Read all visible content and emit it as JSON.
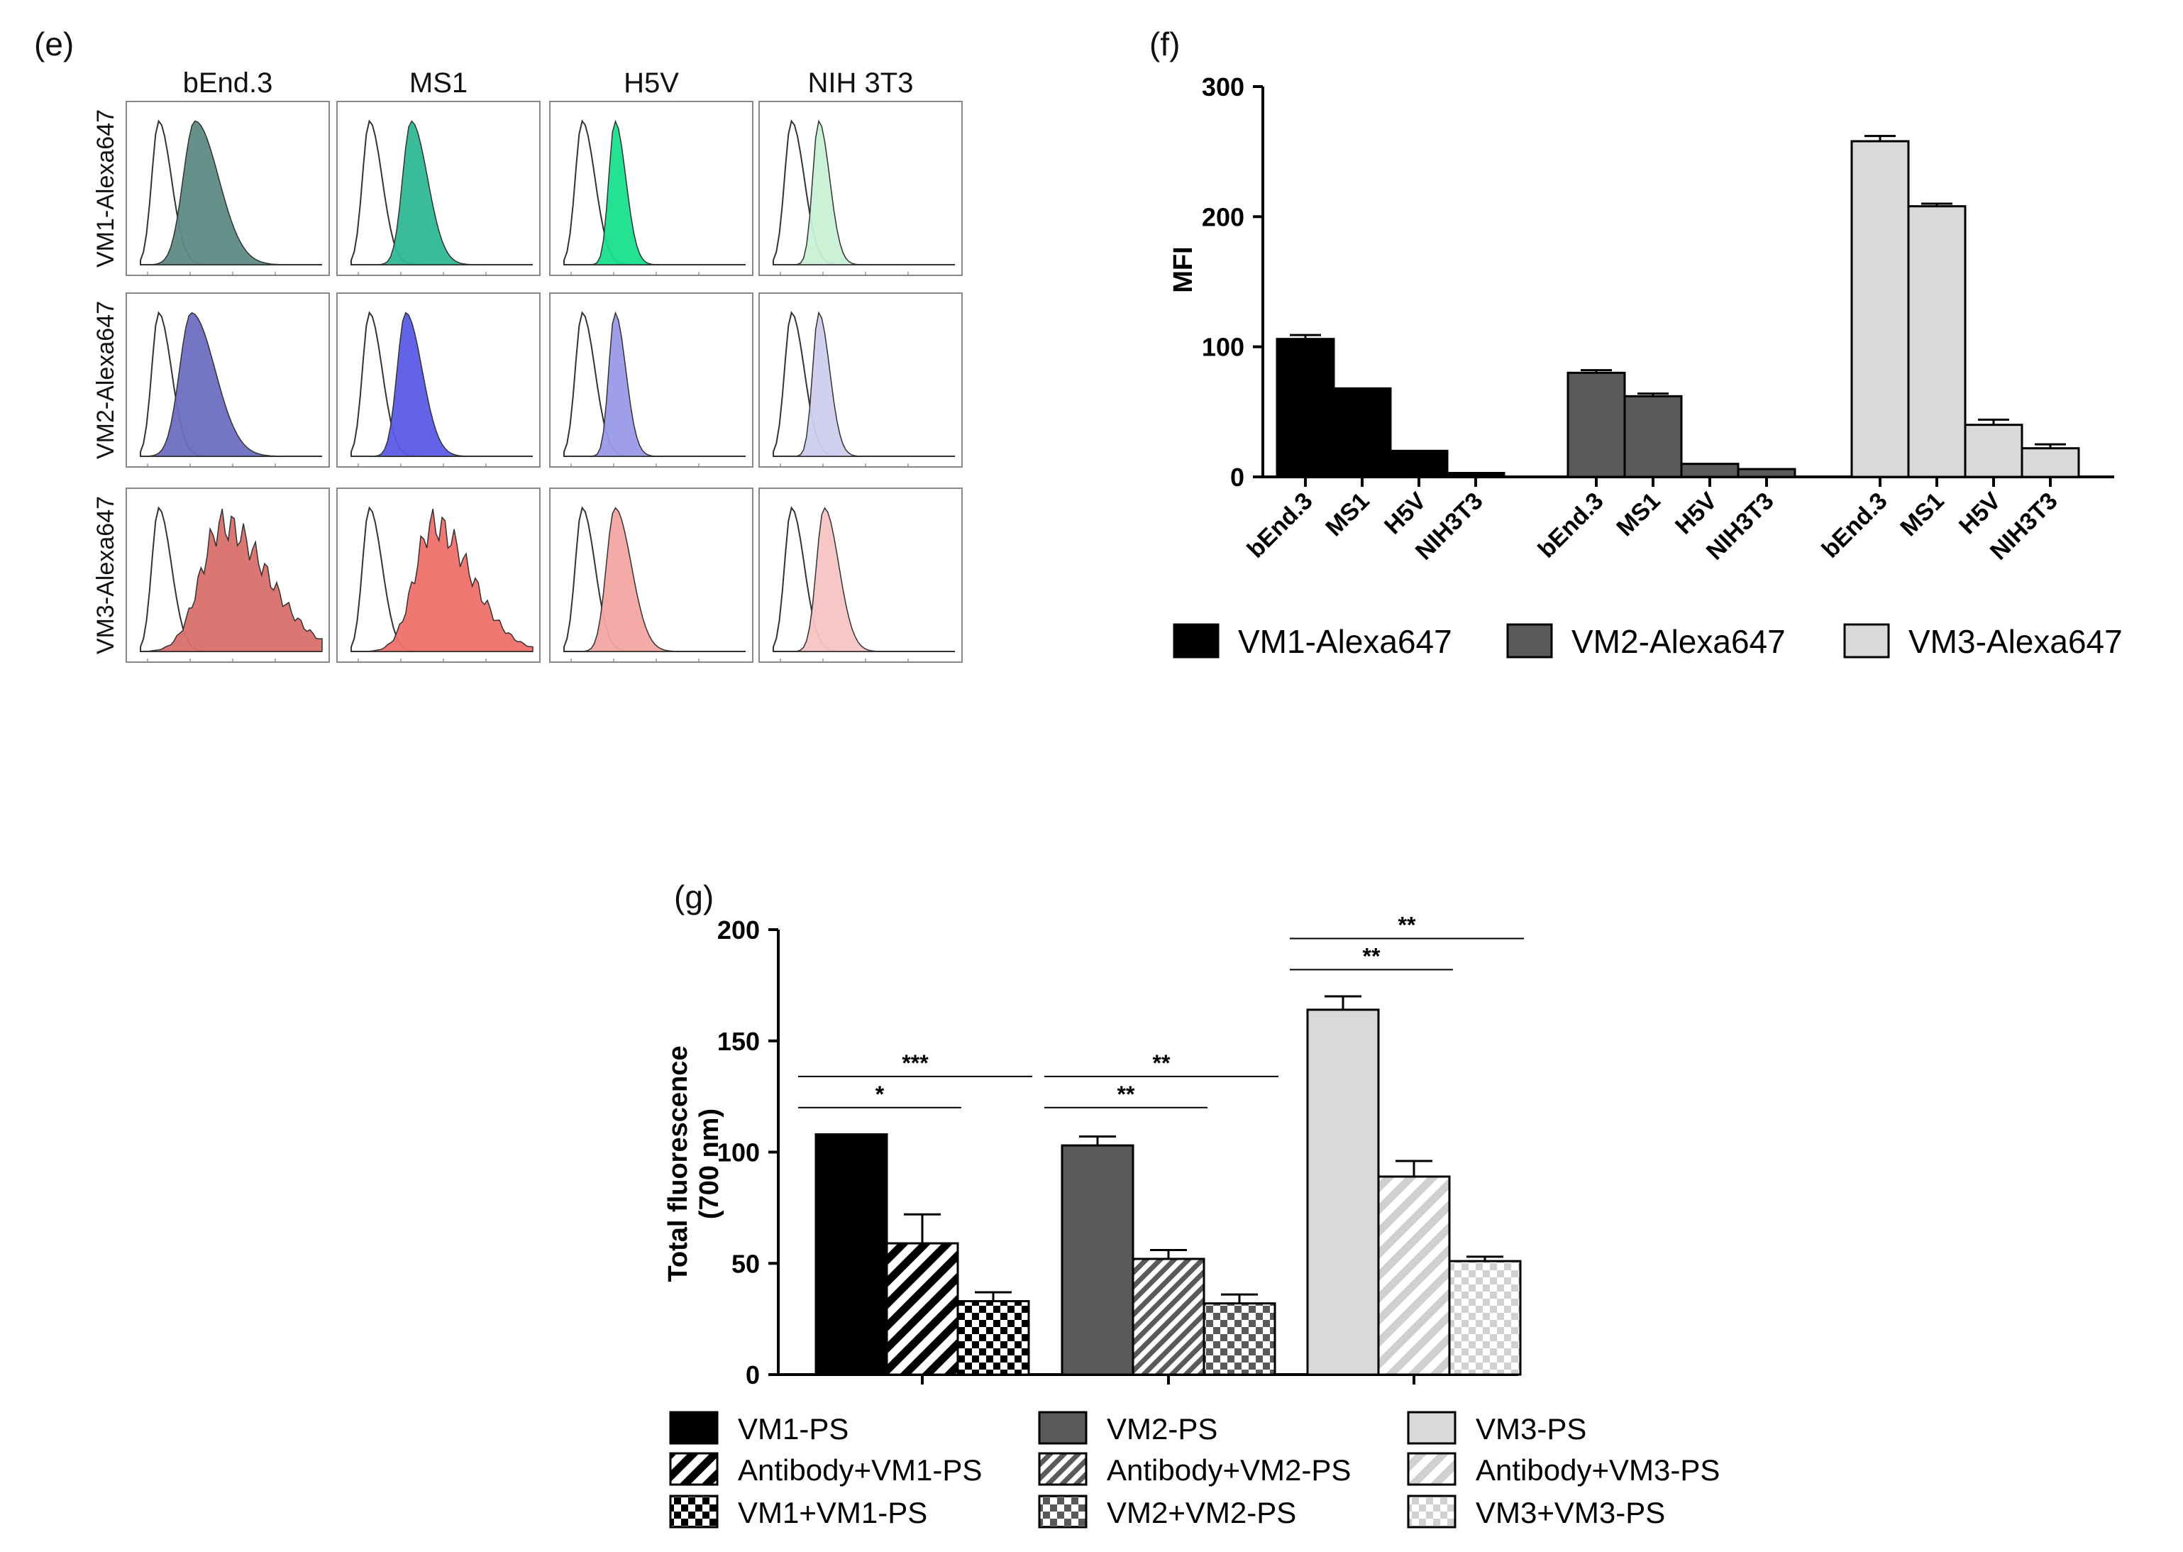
{
  "panel_e": {
    "label": "(e)",
    "columns": [
      "bEnd.3",
      "MS1",
      "H5V",
      "NIH 3T3"
    ],
    "rows": [
      "VM1-Alexa647",
      "VM2-Alexa647",
      "VM3-Alexa647"
    ],
    "fill_colors": [
      [
        "#5e8a84",
        "#2fb896",
        "#18e08c",
        "#c8f0d4"
      ],
      [
        "#6e6ec2",
        "#5b5be6",
        "#9a9ae8",
        "#cfcfee"
      ],
      [
        "#d9706c",
        "#f0706a",
        "#f3a6a2",
        "#f6c4c2"
      ]
    ]
  },
  "chart_data": [
    {
      "type": "bar",
      "panel": "(f)",
      "ylabel": "MFI",
      "ylim": [
        0,
        300
      ],
      "yticks": [
        0,
        100,
        200,
        300
      ],
      "categories": [
        "bEnd.3",
        "MS1",
        "H5V",
        "NIH3T3"
      ],
      "series": [
        {
          "name": "VM1-Alexa647",
          "color": "#000000",
          "values": [
            106,
            68,
            20,
            3
          ],
          "errors": [
            3,
            0,
            0,
            0
          ]
        },
        {
          "name": "VM2-Alexa647",
          "color": "#5a5a5a",
          "values": [
            80,
            62,
            10,
            6
          ],
          "errors": [
            2,
            2,
            0,
            0
          ]
        },
        {
          "name": "VM3-Alexa647",
          "color": "#d9d9d9",
          "values": [
            258,
            208,
            40,
            22
          ],
          "errors": [
            4,
            2,
            4,
            3
          ]
        }
      ],
      "legend": "bottom"
    },
    {
      "type": "bar",
      "panel": "(g)",
      "ylabel": "Total fluorescence (700 nm)",
      "ylim": [
        0,
        200
      ],
      "yticks": [
        0,
        50,
        100,
        150,
        200
      ],
      "groups": [
        {
          "bars": [
            {
              "name": "VM1-PS",
              "value": 108,
              "error": 0,
              "color": "#000000",
              "pattern": "solid"
            },
            {
              "name": "Antibody+VM1-PS",
              "value": 59,
              "error": 13,
              "color": "#000000",
              "pattern": "diagonal"
            },
            {
              "name": "VM1+VM1-PS",
              "value": 33,
              "error": 4,
              "color": "#000000",
              "pattern": "checker"
            }
          ],
          "significance": [
            {
              "label": "*",
              "from": 0,
              "to": 1,
              "y": 120
            },
            {
              "label": "***",
              "from": 0,
              "to": 2,
              "y": 134
            }
          ]
        },
        {
          "bars": [
            {
              "name": "VM2-PS",
              "value": 103,
              "error": 4,
              "color": "#5a5a5a",
              "pattern": "solid"
            },
            {
              "name": "Antibody+VM2-PS",
              "value": 52,
              "error": 4,
              "color": "#5a5a5a",
              "pattern": "diagonal"
            },
            {
              "name": "VM2+VM2-PS",
              "value": 32,
              "error": 4,
              "color": "#5a5a5a",
              "pattern": "checker"
            }
          ],
          "significance": [
            {
              "label": "**",
              "from": 0,
              "to": 1,
              "y": 120
            },
            {
              "label": "**",
              "from": 0,
              "to": 2,
              "y": 134
            }
          ]
        },
        {
          "bars": [
            {
              "name": "VM3-PS",
              "value": 164,
              "error": 6,
              "color": "#d9d9d9",
              "pattern": "solid"
            },
            {
              "name": "Antibody+VM3-PS",
              "value": 89,
              "error": 7,
              "color": "#d9d9d9",
              "pattern": "diagonal"
            },
            {
              "name": "VM3+VM3-PS",
              "value": 51,
              "error": 2,
              "color": "#d9d9d9",
              "pattern": "checker"
            }
          ],
          "significance": [
            {
              "label": "**",
              "from": 0,
              "to": 1,
              "y": 182
            },
            {
              "label": "**",
              "from": 0,
              "to": 2,
              "y": 196
            }
          ]
        }
      ],
      "legend": "bottom"
    }
  ]
}
